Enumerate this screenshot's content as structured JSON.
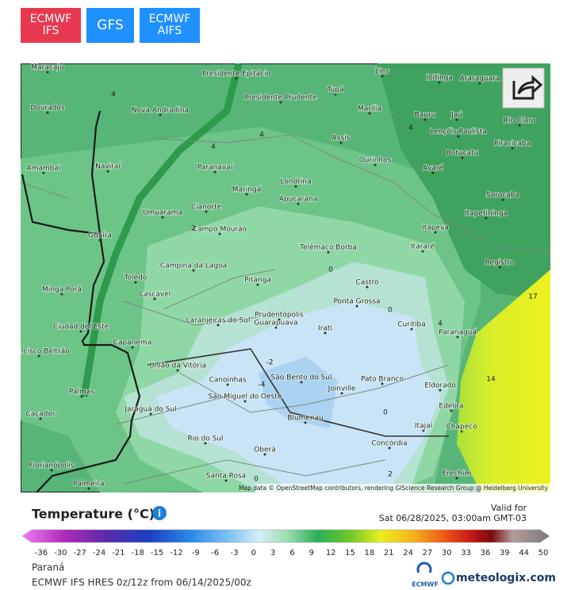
{
  "model_buttons": [
    {
      "lines": [
        "ECMWF",
        "IFS"
      ]
    },
    {
      "lines": [
        "GFS"
      ]
    },
    {
      "lines": [
        "ECMWF",
        "AIFS"
      ]
    }
  ],
  "map": {
    "cities": [
      "Maracaju",
      "Presidente Epitácio",
      "Tupã",
      "Lins",
      "Ibitinga",
      "Araraquara",
      "Presidente Prudente",
      "Dourados",
      "Nova Andradina",
      "Marília",
      "Bauru",
      "Jaú",
      "Lençóis Paulista",
      "Rio Claro",
      "Assis",
      "Piracicaba",
      "Botucatu",
      "Ourinhos",
      "Amambai",
      "Naviraí",
      "Paranavaí",
      "Avaré",
      "Londrina",
      "Maringá",
      "Apucarana",
      "Sorocaba",
      "Cianorte",
      "Umuarama",
      "Itapetininga",
      "Campo Mourão",
      "Itapeva",
      "Guaíra",
      "Telêmaco Borba",
      "Itararé",
      "Campina da Lagoa",
      "Registro",
      "Toledo",
      "Pitanga",
      "Castro",
      "Minga Porã",
      "Cascavel",
      "Ponta Grossa",
      "Prudentópolis",
      "Laranjeiras do Sul",
      "Guarapuava",
      "Ciudad del Este",
      "Curitiba",
      "Irati",
      "Paranaguá",
      "Capanema",
      "Francisco Beltrão",
      "União da Vitória",
      "São Bento do Sul",
      "Pato Branco",
      "Canoinhas",
      "Joinville",
      "Eldorado",
      "Palmas",
      "São Miguel do Oeste",
      "Jaraguá do Sul",
      "Edelira",
      "Caçador",
      "Blumenau",
      "Itajaí",
      "Chapecó",
      "Rio do Sul",
      "Concórdia",
      "Oberá",
      "Florianópolis",
      "Erechim",
      "Santa Rosa",
      "Palmeira"
    ],
    "contour_labels": [
      4,
      4,
      4,
      4,
      4,
      2,
      0,
      0,
      -2,
      -4,
      0,
      2,
      0,
      14,
      17
    ],
    "attribution": "Map data © OpenStreetMap contributors, rendering GIScience Research Group @ Heidelberg University"
  },
  "legend": {
    "title": "Temperature (°C)",
    "valid_label": "Valid for",
    "valid_time": "Sat 06/28/2025, 03:00am GMT-03",
    "ticks": [
      -36,
      -30,
      -27,
      -24,
      -21,
      -18,
      -15,
      -12,
      -9,
      -6,
      -3,
      0,
      3,
      6,
      9,
      12,
      15,
      18,
      21,
      24,
      27,
      30,
      33,
      36,
      39,
      44,
      50
    ]
  },
  "footer": {
    "region": "Paraná",
    "model_run": "ECMWF IFS HRES 0z/12z from 06/14/2025/00z",
    "logo_small": "ECMWF",
    "logo": "meteologix.com"
  }
}
